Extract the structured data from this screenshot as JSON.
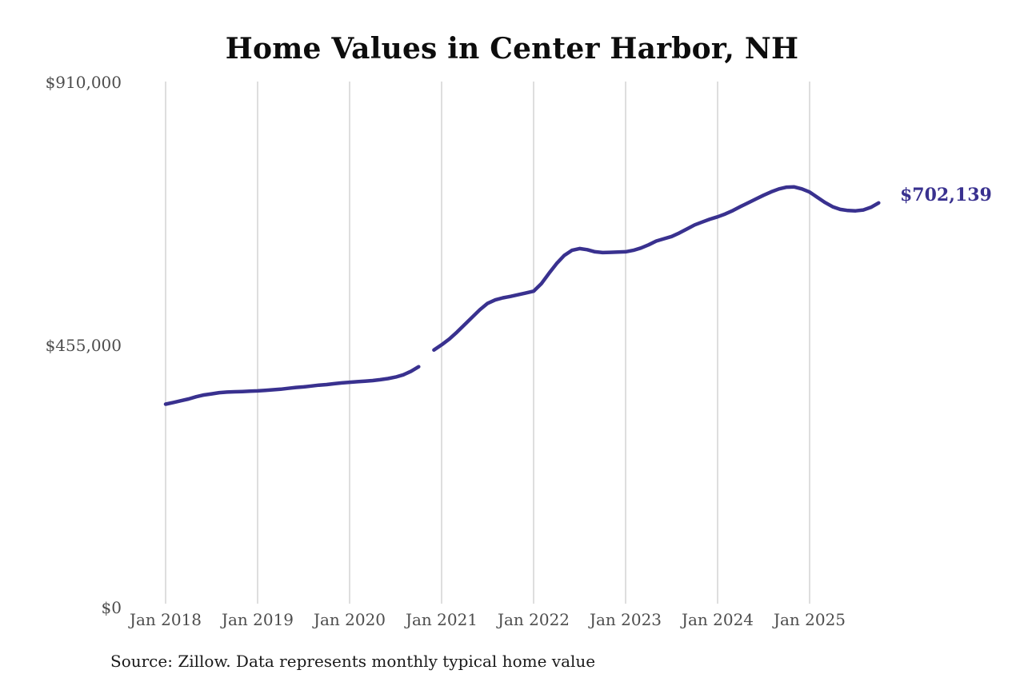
{
  "title": "Home Values in Center Harbor, NH",
  "source_note": "Source: Zillow. Data represents monthly typical home value",
  "colors": {
    "line": "#39318f",
    "grid": "#c9c9c9",
    "tick": "#4d4d4d",
    "title": "#0d0d0d",
    "source": "#1a1a1a",
    "bg": "#ffffff",
    "endlabel": "#39318f"
  },
  "chart_data": {
    "type": "line",
    "title": "Home Values in Center Harbor, NH",
    "xlabel": "",
    "ylabel": "",
    "ylim": [
      0,
      910000
    ],
    "y_ticks": [
      0,
      455000,
      910000
    ],
    "y_tick_labels": [
      "$0",
      "$455,000",
      "$910,000"
    ],
    "x_tick_labels": [
      "Jan 2018",
      "Jan 2019",
      "Jan 2020",
      "Jan 2021",
      "Jan 2022",
      "Jan 2023",
      "Jan 2024",
      "Jan 2025"
    ],
    "grid": "vertical-only",
    "legend": "none",
    "frequency": "monthly",
    "last_point_label": "$702,139",
    "last_value": 702139,
    "months": [
      "Jan 2018",
      "Feb 2018",
      "Mar 2018",
      "Apr 2018",
      "May 2018",
      "Jun 2018",
      "Jul 2018",
      "Aug 2018",
      "Sep 2018",
      "Oct 2018",
      "Nov 2018",
      "Dec 2018",
      "Jan 2019",
      "Feb 2019",
      "Mar 2019",
      "Apr 2019",
      "May 2019",
      "Jun 2019",
      "Jul 2019",
      "Aug 2019",
      "Sep 2019",
      "Oct 2019",
      "Nov 2019",
      "Dec 2019",
      "Jan 2020",
      "Feb 2020",
      "Mar 2020",
      "Apr 2020",
      "May 2020",
      "Jun 2020",
      "Jul 2020",
      "Aug 2020",
      "Sep 2020",
      "Oct 2020",
      "Nov 2020",
      "Dec 2020",
      "Jan 2021",
      "Feb 2021",
      "Mar 2021",
      "Apr 2021",
      "May 2021",
      "Jun 2021",
      "Jul 2021",
      "Aug 2021",
      "Sep 2021",
      "Oct 2021",
      "Nov 2021",
      "Dec 2021",
      "Jan 2022",
      "Feb 2022",
      "Mar 2022",
      "Apr 2022",
      "May 2022",
      "Jun 2022",
      "Jul 2022",
      "Aug 2022",
      "Sep 2022",
      "Oct 2022",
      "Nov 2022",
      "Dec 2022",
      "Jan 2023",
      "Feb 2023",
      "Mar 2023",
      "Apr 2023",
      "May 2023",
      "Jun 2023",
      "Jul 2023",
      "Aug 2023",
      "Sep 2023",
      "Oct 2023",
      "Nov 2023",
      "Dec 2023",
      "Jan 2024",
      "Feb 2024",
      "Mar 2024",
      "Apr 2024",
      "May 2024",
      "Jun 2024",
      "Jul 2024",
      "Aug 2024",
      "Sep 2024",
      "Oct 2024",
      "Nov 2024",
      "Dec 2024",
      "Jan 2025",
      "Feb 2025",
      "Mar 2025",
      "Apr 2025",
      "May 2025",
      "Jun 2025",
      "Jul 2025",
      "Aug 2025",
      "Sep 2025",
      "Oct 2025"
    ],
    "values": [
      353000,
      356000,
      359000,
      362000,
      366000,
      369000,
      371000,
      373000,
      374000,
      374500,
      375000,
      375500,
      376000,
      377000,
      378000,
      379000,
      380500,
      382000,
      383000,
      384500,
      386000,
      387000,
      388500,
      390000,
      391000,
      392000,
      393000,
      394000,
      395500,
      397500,
      400000,
      404000,
      410000,
      418000,
      null,
      447000,
      456000,
      466000,
      478000,
      491000,
      504000,
      517000,
      528000,
      534000,
      537500,
      540000,
      543000,
      546000,
      549000,
      562000,
      580000,
      597000,
      611000,
      620000,
      623000,
      621000,
      617500,
      616000,
      616500,
      617000,
      617500,
      620000,
      624000,
      629500,
      636000,
      640000,
      644000,
      650000,
      657000,
      664000,
      669000,
      674000,
      678000,
      683000,
      689000,
      696000,
      702500,
      709000,
      715500,
      721500,
      726500,
      729500,
      730000,
      726500,
      721000,
      712000,
      703000,
      695500,
      691000,
      689000,
      688500,
      690000,
      694500,
      702139
    ]
  }
}
